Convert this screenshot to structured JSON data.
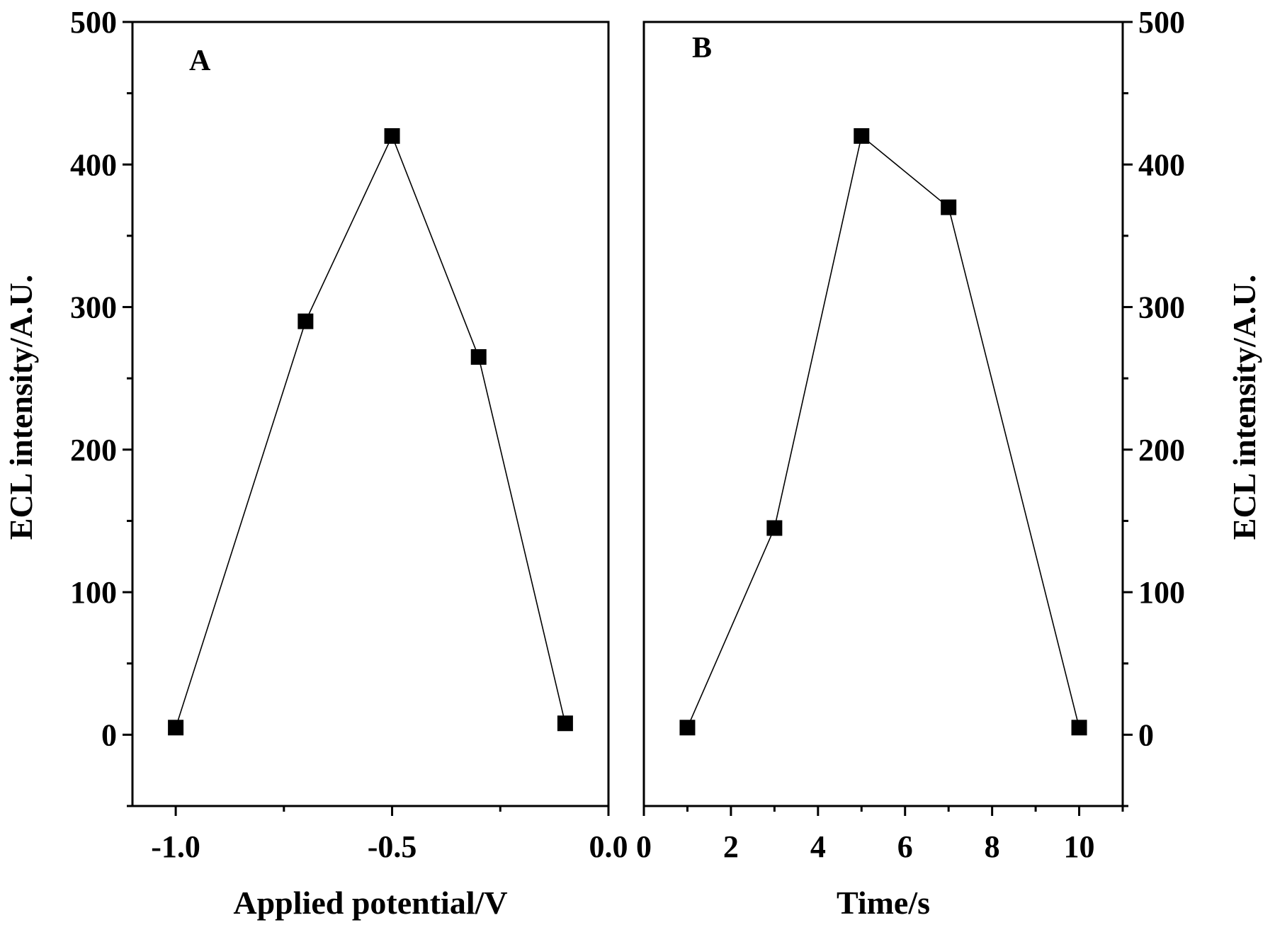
{
  "chart_data": [
    {
      "type": "line",
      "panel_label": "A",
      "xlabel": "Applied potential/V",
      "ylabel": "ECL intensity/A.U.",
      "x_ticks": [
        "-1.0",
        "-0.5",
        "0.0"
      ],
      "x_tick_values": [
        -1.0,
        -0.5,
        0.0
      ],
      "y_ticks": [
        "0",
        "100",
        "200",
        "300",
        "400",
        "500"
      ],
      "y_tick_values": [
        0,
        100,
        200,
        300,
        400,
        500
      ],
      "xlim": [
        -1.1,
        0.0
      ],
      "ylim": [
        -50,
        500
      ],
      "y_axis_side": "left",
      "grid": false,
      "marker": "square",
      "series": [
        {
          "x": [
            -1.0,
            -0.7,
            -0.5,
            -0.3,
            -0.1
          ],
          "y": [
            5,
            290,
            420,
            265,
            8
          ]
        }
      ]
    },
    {
      "type": "line",
      "panel_label": "B",
      "xlabel": "Time/s",
      "ylabel": "ECL intensity/A.U.",
      "x_ticks": [
        "0",
        "2",
        "4",
        "6",
        "8",
        "10"
      ],
      "x_tick_values": [
        0,
        2,
        4,
        6,
        8,
        10
      ],
      "y_ticks": [
        "0",
        "100",
        "200",
        "300",
        "400",
        "500"
      ],
      "y_tick_values": [
        0,
        100,
        200,
        300,
        400,
        500
      ],
      "xlim": [
        0,
        11
      ],
      "ylim": [
        -50,
        500
      ],
      "y_axis_side": "right",
      "grid": false,
      "marker": "square",
      "series": [
        {
          "x": [
            1,
            3,
            5,
            7,
            10
          ],
          "y": [
            5,
            145,
            420,
            370,
            5
          ]
        }
      ]
    }
  ]
}
